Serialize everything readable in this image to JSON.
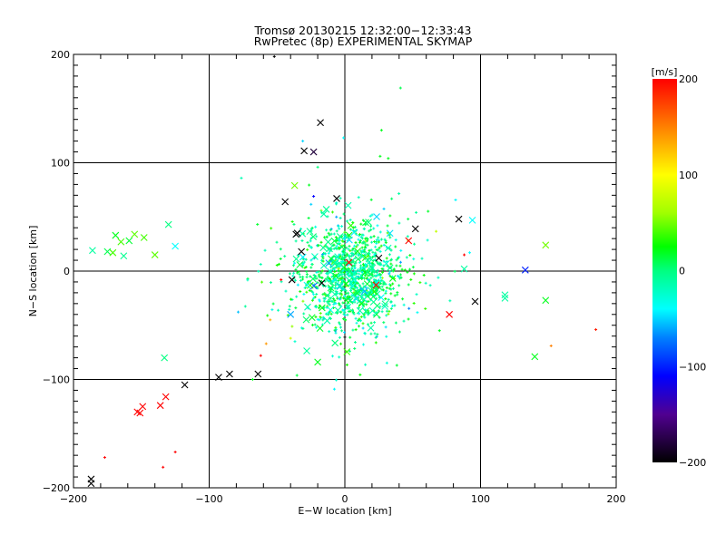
{
  "chart_data": {
    "type": "scatter",
    "title": "Tromsø 20130215 12:32:00−12:33:43",
    "subtitle": "RwPretec (8p) EXPERIMENTAL SKYMAP",
    "xlabel": "E−W location [km]",
    "ylabel": "N−S location [km]",
    "xlim": [
      -200,
      200
    ],
    "ylim": [
      -200,
      200
    ],
    "grid_lines": [
      -100,
      0,
      100
    ],
    "xticks": [
      {
        "value": -200,
        "label": "−200"
      },
      {
        "value": -100,
        "label": "−100"
      },
      {
        "value": 0,
        "label": "0"
      },
      {
        "value": 100,
        "label": "100"
      },
      {
        "value": 200,
        "label": "200"
      }
    ],
    "yticks": [
      {
        "value": -200,
        "label": "−200"
      },
      {
        "value": -100,
        "label": "−100"
      },
      {
        "value": 0,
        "label": "0"
      },
      {
        "value": 100,
        "label": "100"
      },
      {
        "value": 200,
        "label": "200"
      }
    ],
    "colorbar": {
      "label": "[m/s]",
      "range": [
        -200,
        200
      ],
      "ticks": [
        {
          "value": 200,
          "label": "200"
        },
        {
          "value": 100,
          "label": "100"
        },
        {
          "value": 0,
          "label": "0"
        },
        {
          "value": -100,
          "label": "−100"
        },
        {
          "value": -200,
          "label": "−200"
        }
      ],
      "stops": [
        [
          -200,
          "#000000"
        ],
        [
          -150,
          "#500090"
        ],
        [
          -110,
          "#0000ff"
        ],
        [
          -70,
          "#0080ff"
        ],
        [
          -40,
          "#00ffff"
        ],
        [
          0,
          "#00ff80"
        ],
        [
          25,
          "#00ff00"
        ],
        [
          60,
          "#a0ff00"
        ],
        [
          100,
          "#ffff00"
        ],
        [
          150,
          "#ff8000"
        ],
        [
          200,
          "#ff0000"
        ]
      ]
    },
    "point_fields": [
      "x_km",
      "y_km",
      "velocity_ms",
      "marker"
    ],
    "points": [
      [
        -186,
        19,
        -10,
        "x"
      ],
      [
        -169,
        33,
        20,
        "x"
      ],
      [
        -175,
        18,
        10,
        "x"
      ],
      [
        -171,
        17,
        40,
        "x"
      ],
      [
        -165,
        27,
        40,
        "x"
      ],
      [
        -163,
        14,
        -5,
        "x"
      ],
      [
        -159,
        28,
        15,
        "x"
      ],
      [
        -155,
        34,
        45,
        "x"
      ],
      [
        -148,
        31,
        40,
        "x"
      ],
      [
        -140,
        15,
        45,
        "x"
      ],
      [
        -130,
        43,
        0,
        "x"
      ],
      [
        -125,
        23,
        -40,
        "x"
      ],
      [
        -133,
        -80,
        0,
        "x"
      ],
      [
        -118,
        -105,
        -200,
        "x"
      ],
      [
        -132,
        -116,
        200,
        "x"
      ],
      [
        -136,
        -124,
        200,
        "x"
      ],
      [
        -149,
        -125,
        200,
        "x"
      ],
      [
        -153,
        -130,
        200,
        "x"
      ],
      [
        -151,
        -131,
        200,
        "x"
      ],
      [
        -177,
        -172,
        200,
        "+"
      ],
      [
        -125,
        -167,
        200,
        "+"
      ],
      [
        -134,
        -181,
        200,
        "+"
      ],
      [
        -187,
        -192,
        -200,
        "x"
      ],
      [
        -187,
        -196,
        -200,
        "x"
      ],
      [
        -18,
        137,
        -200,
        "x"
      ],
      [
        -30,
        111,
        -200,
        "x"
      ],
      [
        -23,
        110,
        -180,
        "x"
      ],
      [
        -31,
        120,
        -50,
        "+"
      ],
      [
        -1,
        123,
        -40,
        "+"
      ],
      [
        27,
        130,
        20,
        "+"
      ],
      [
        26,
        106,
        20,
        "+"
      ],
      [
        32,
        104,
        20,
        "+"
      ],
      [
        41,
        169,
        10,
        "+"
      ],
      [
        -52,
        198,
        -200,
        "+"
      ],
      [
        -37,
        79,
        50,
        "x"
      ],
      [
        -44,
        64,
        -200,
        "x"
      ],
      [
        -6,
        67,
        -200,
        "x"
      ],
      [
        -23,
        69,
        -110,
        "+"
      ],
      [
        84,
        48,
        -200,
        "x"
      ],
      [
        94,
        47,
        -40,
        "x"
      ],
      [
        52,
        39,
        -200,
        "x"
      ],
      [
        -35,
        35,
        -200,
        "x"
      ],
      [
        148,
        24,
        50,
        "x"
      ],
      [
        133,
        1,
        -100,
        "x"
      ],
      [
        88,
        2,
        -10,
        "x"
      ],
      [
        118,
        -22,
        -10,
        "x"
      ],
      [
        118,
        -25,
        -10,
        "x"
      ],
      [
        148,
        -27,
        20,
        "x"
      ],
      [
        96,
        -28,
        -200,
        "x"
      ],
      [
        77,
        -40,
        200,
        "x"
      ],
      [
        185,
        -54,
        190,
        "+"
      ],
      [
        152,
        -69,
        150,
        "+"
      ],
      [
        140,
        -79,
        20,
        "x"
      ],
      [
        88,
        15,
        200,
        "+"
      ],
      [
        92,
        17,
        -40,
        "+"
      ],
      [
        -93,
        -98,
        -200,
        "x"
      ],
      [
        -85,
        -95,
        -200,
        "x"
      ],
      [
        -64,
        -95,
        -200,
        "x"
      ],
      [
        -47,
        -8,
        200,
        "+"
      ],
      [
        -39,
        -8,
        -200,
        "x"
      ],
      [
        23,
        -13,
        200,
        "x"
      ],
      [
        47,
        28,
        200,
        "x"
      ],
      [
        3,
        8,
        200,
        "x"
      ],
      [
        25,
        12,
        -200,
        "x"
      ],
      [
        -36,
        34,
        -200,
        "x"
      ],
      [
        -32,
        18,
        -200,
        "x"
      ],
      [
        -17,
        -11,
        -200,
        "x"
      ],
      [
        0,
        -61,
        -200,
        "+"
      ],
      [
        -40,
        -40,
        -60,
        "x"
      ],
      [
        -55,
        -45,
        130,
        "+"
      ],
      [
        -58,
        -67,
        140,
        "+"
      ],
      [
        -62,
        -78,
        200,
        "+"
      ],
      [
        -40,
        -62,
        80,
        "+"
      ],
      [
        -20,
        -84,
        20,
        "x"
      ],
      [
        -68,
        -100,
        20,
        "+"
      ]
    ],
    "cloud": {
      "center_km": [
        4,
        -4
      ],
      "spread_km": [
        18,
        24
      ],
      "dot_count": 900,
      "cross_count": 110,
      "halo_count": 160,
      "halo_spread_km": [
        38,
        40
      ],
      "velocity_mean": -5,
      "velocity_spread": 22
    }
  }
}
